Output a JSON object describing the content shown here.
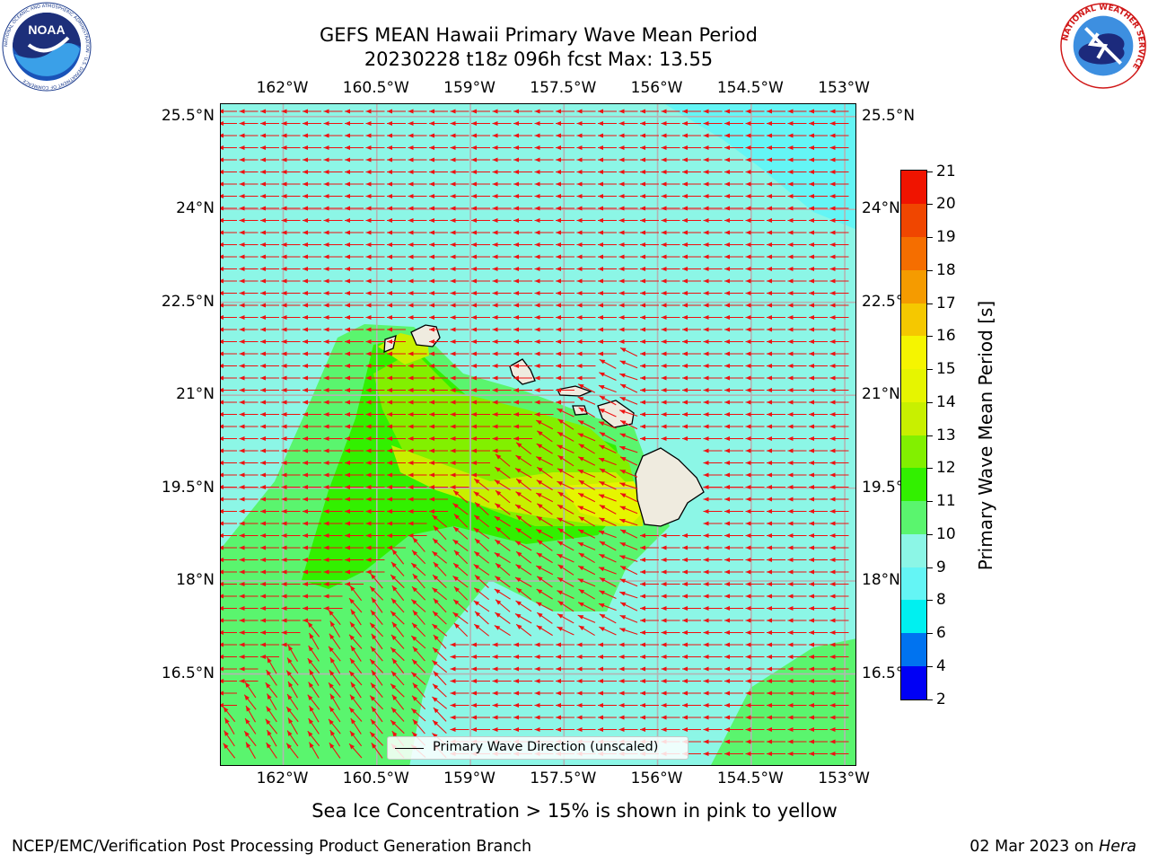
{
  "header": {
    "title_line1": "GEFS MEAN Hawaii Primary Wave Mean Period",
    "title_line2": "20230228 t18z 096h fcst   Max: 13.55"
  },
  "logos": {
    "noaa_text": "NOAA",
    "noaa_ring_text": "NATIONAL OCEANIC AND ATMOSPHERIC ADMINISTRATION · U.S. DEPARTMENT OF COMMERCE",
    "nws_ring_text": "NATIONAL WEATHER SERVICE"
  },
  "map": {
    "lon_labels": [
      "162°W",
      "160.5°W",
      "159°W",
      "157.5°W",
      "156°W",
      "154.5°W",
      "153°W"
    ],
    "lat_labels": [
      "25.5°N",
      "24°N",
      "22.5°N",
      "21°N",
      "19.5°N",
      "18°N",
      "16.5°N"
    ],
    "lon_range": [
      -163.0,
      -152.8
    ],
    "lat_range": [
      15.0,
      25.7
    ],
    "grid": true,
    "legend_label": "Primary Wave Direction (unscaled)",
    "arrow_color": "#ee1111",
    "land_color": "#efebdf",
    "field_color_base": "#8cf6e6"
  },
  "colorbar": {
    "label": "Primary Wave Mean Period [s]",
    "levels": [
      "2",
      "4",
      "6",
      "8",
      "9",
      "10",
      "11",
      "12",
      "13",
      "14",
      "15",
      "16",
      "17",
      "18",
      "19",
      "20",
      "21"
    ],
    "colors": [
      "#0000f5",
      "#0073f0",
      "#00f0f0",
      "#64f5f5",
      "#8cf6e6",
      "#5af56e",
      "#32f000",
      "#82f000",
      "#c8f000",
      "#e6f500",
      "#f5f500",
      "#f5c800",
      "#f59b00",
      "#f56e00",
      "#f04600",
      "#f01400"
    ]
  },
  "footer": {
    "subtitle": "Sea Ice Concentration > 15% is shown in pink to yellow",
    "left": "NCEP/EMC/Verification Post Processing Product Generation Branch",
    "right_date": "02 Mar 2023 on ",
    "right_host": "Hera"
  }
}
